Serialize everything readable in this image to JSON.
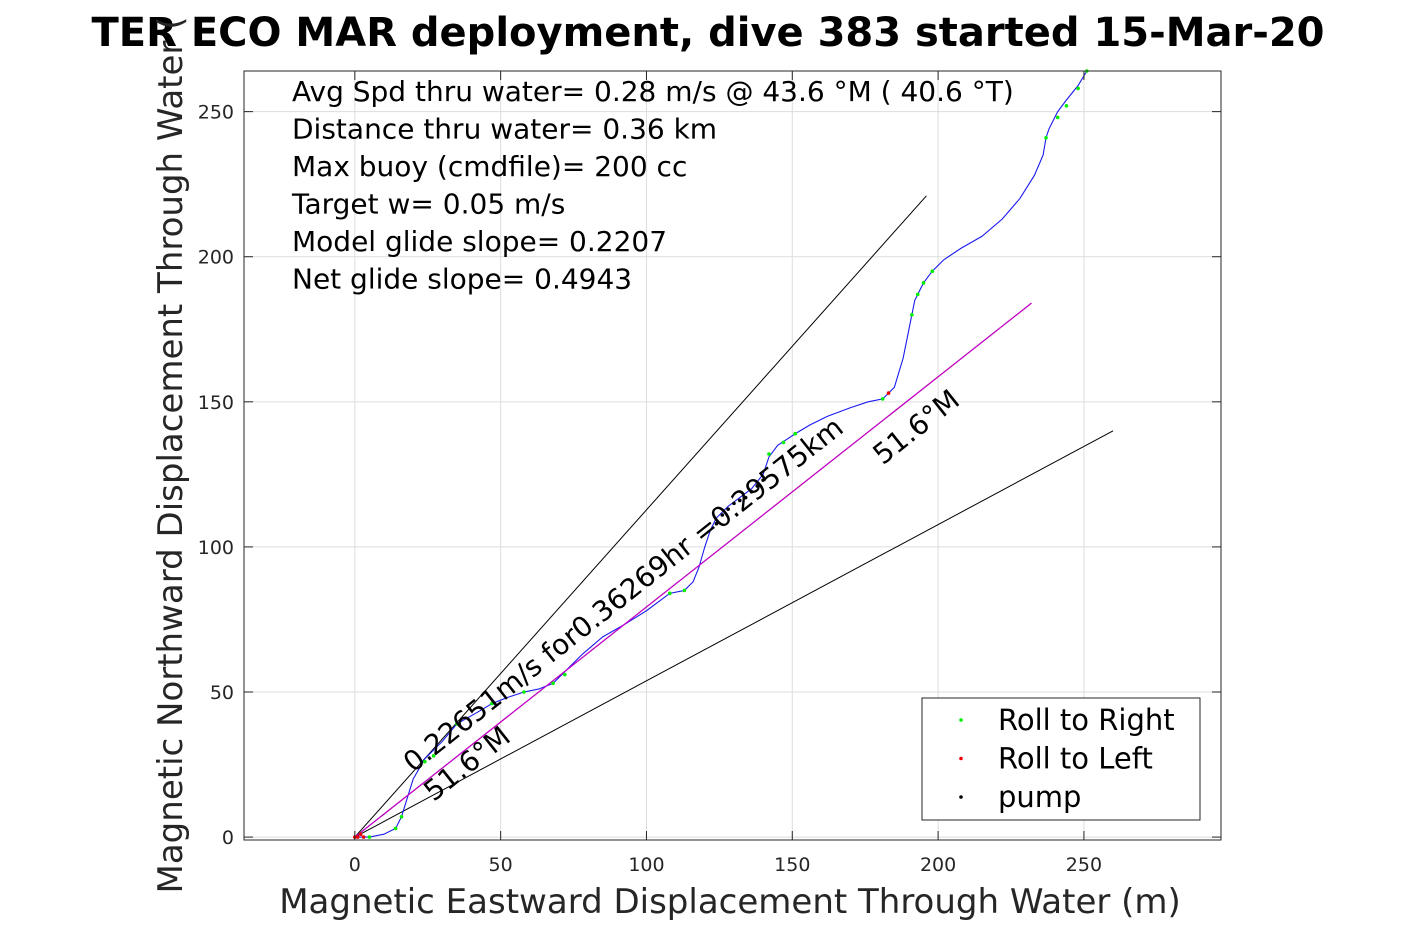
{
  "chart_data": {
    "type": "line",
    "title": "TER ECO MAR deployment, dive 383 started 15-Mar-20",
    "xlabel": "Magnetic Eastward Displacement Through Water (m)",
    "ylabel": "Magnetic Northward Displacement Through Water (",
    "xlim": [
      -38,
      297
    ],
    "ylim": [
      -1,
      264
    ],
    "xticks": [
      0,
      50,
      100,
      150,
      200,
      250
    ],
    "yticks": [
      0,
      50,
      100,
      150,
      200,
      250
    ],
    "grid": true,
    "legend_position": "bottom-right",
    "stats_lines": [
      "Avg Spd thru water=  0.28 m/s @  43.6 °M ( 40.6 °T)",
      "Distance thru water=  0.36 km",
      "Max buoy (cmdfile)= 200 cc",
      "Target w= 0.05 m/s",
      "Model glide slope= 0.2207",
      "Net glide slope= 0.4943"
    ],
    "series": [
      {
        "name": "Roll to Right",
        "kind": "points",
        "color": "#00ee00",
        "x": [
          5,
          14,
          16,
          24,
          27,
          35,
          47,
          58,
          68,
          72,
          108,
          113,
          142,
          147,
          151,
          181,
          191,
          193,
          195,
          198,
          237,
          241,
          244,
          248,
          251
        ],
        "y": [
          0,
          3,
          7,
          26,
          28,
          39,
          46,
          50,
          53,
          56,
          84,
          85,
          132,
          136,
          139,
          151,
          180,
          187,
          191,
          195,
          241,
          248,
          252,
          258,
          264
        ]
      },
      {
        "name": "Roll to Left",
        "kind": "points",
        "color": "#ee0000",
        "x": [
          0,
          1,
          2,
          3,
          183
        ],
        "y": [
          0,
          0,
          1,
          0,
          153
        ]
      },
      {
        "name": "pump",
        "kind": "points",
        "color": "#000000",
        "x": [
          124,
          126,
          128,
          130,
          132,
          134,
          136,
          138,
          140
        ],
        "y": [
          108,
          111,
          113,
          115,
          116,
          117,
          119,
          121,
          123
        ]
      },
      {
        "name": "",
        "kind": "track",
        "color": "#1a1aee",
        "x": [
          0,
          5,
          10,
          14,
          16,
          20,
          24,
          30,
          35,
          42,
          47,
          52,
          58,
          63,
          68,
          72,
          78,
          85,
          92,
          100,
          108,
          113,
          116,
          118,
          120,
          122,
          124,
          128,
          132,
          136,
          140,
          142,
          145,
          148,
          151,
          156,
          162,
          170,
          176,
          181,
          185,
          188,
          190,
          191,
          192,
          193,
          195,
          198,
          202,
          208,
          215,
          222,
          228,
          233,
          236,
          237,
          238,
          240,
          241,
          244,
          248,
          251
        ],
        "y": [
          0,
          0,
          1,
          3,
          7,
          20,
          27,
          33,
          39,
          43,
          46,
          48,
          50,
          51,
          53,
          57,
          63,
          69,
          73,
          78,
          84,
          85,
          88,
          93,
          100,
          106,
          110,
          114,
          117,
          120,
          125,
          131,
          135,
          137,
          139,
          142,
          145,
          148,
          150,
          151,
          155,
          165,
          175,
          180,
          185,
          187,
          191,
          195,
          199,
          203,
          207,
          213,
          220,
          228,
          235,
          241,
          244,
          248,
          250,
          254,
          259,
          264
        ]
      },
      {
        "name": "",
        "kind": "line",
        "color": "#cc00cc",
        "x": [
          0,
          232
        ],
        "y": [
          0,
          184
        ]
      }
    ],
    "reference_lines": [
      {
        "color": "#000000",
        "x": [
          0,
          196
        ],
        "y": [
          0,
          221
        ]
      },
      {
        "color": "#000000",
        "x": [
          0,
          260
        ],
        "y": [
          0,
          140
        ]
      },
      {
        "color": "#000000",
        "x": [
          0,
          232
        ],
        "y": [
          0,
          184
        ]
      }
    ],
    "annotations": [
      {
        "text": "0.22651m/s for0.36269hr =0.29575km",
        "x": 20,
        "y": 22,
        "angle_deg": 38.4
      },
      {
        "text": "51.6°M",
        "x": 27,
        "y": 12,
        "angle_deg": 38.4
      },
      {
        "text": "51.6°M",
        "x": 181,
        "y": 128,
        "angle_deg": 38.4
      }
    ]
  }
}
